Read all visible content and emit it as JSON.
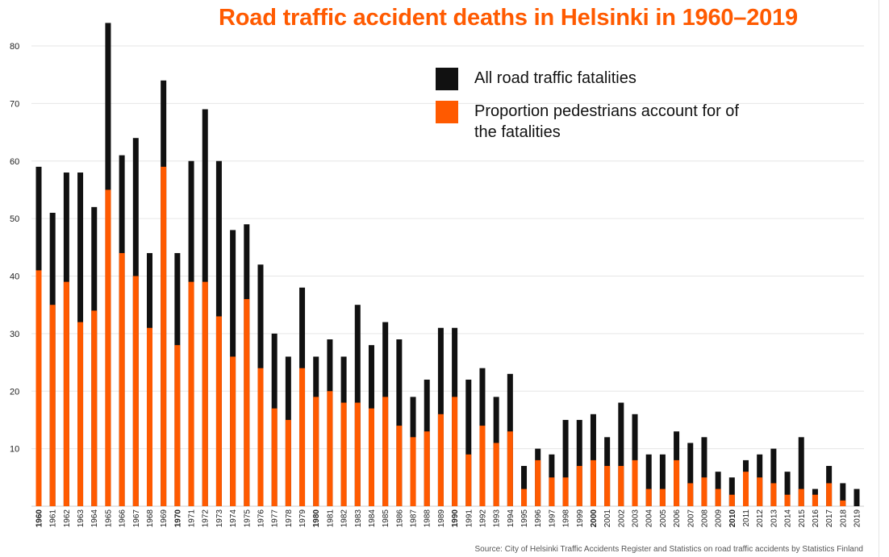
{
  "chart_data": {
    "type": "bar",
    "title": "Road traffic accident deaths in Helsinki in 1960–2019",
    "xlabel": "",
    "ylabel": "",
    "ylim": [
      0,
      85
    ],
    "yticks": [
      "10",
      "20",
      "30",
      "40",
      "50",
      "60",
      "70",
      "80"
    ],
    "categories": [
      "1960",
      "1961",
      "1962",
      "1963",
      "1964",
      "1965",
      "1966",
      "1967",
      "1968",
      "1969",
      "1970",
      "1971",
      "1972",
      "1973",
      "1974",
      "1975",
      "1976",
      "1977",
      "1978",
      "1979",
      "1980",
      "1981",
      "1982",
      "1983",
      "1984",
      "1985",
      "1986",
      "1987",
      "1988",
      "1989",
      "1990",
      "1991",
      "1992",
      "1993",
      "1994",
      "1995",
      "1996",
      "1997",
      "1998",
      "1999",
      "2000",
      "2001",
      "2002",
      "2003",
      "2004",
      "2005",
      "2006",
      "2007",
      "2008",
      "2009",
      "2010",
      "2011",
      "2012",
      "2013",
      "2014",
      "2015",
      "2016",
      "2017",
      "2018",
      "2019"
    ],
    "bold_categories": [
      "1960",
      "1970",
      "1980",
      "1990",
      "2000",
      "2010"
    ],
    "series": [
      {
        "name": "All road traffic fatalities",
        "color": "#111111",
        "values": [
          59,
          51,
          58,
          58,
          52,
          84,
          61,
          64,
          44,
          74,
          44,
          60,
          69,
          60,
          48,
          49,
          42,
          30,
          26,
          38,
          26,
          29,
          26,
          35,
          28,
          32,
          29,
          19,
          22,
          31,
          31,
          22,
          24,
          19,
          23,
          7,
          10,
          9,
          15,
          15,
          16,
          12,
          18,
          16,
          9,
          9,
          13,
          11,
          12,
          6,
          5,
          8,
          9,
          10,
          6,
          12,
          3,
          7,
          4,
          3
        ]
      },
      {
        "name": "Proportion pedestrians account for of the fatalities",
        "color": "#ff5a00",
        "values": [
          41,
          35,
          39,
          32,
          34,
          55,
          44,
          40,
          31,
          59,
          28,
          39,
          39,
          33,
          26,
          36,
          24,
          17,
          15,
          24,
          19,
          20,
          18,
          18,
          17,
          19,
          14,
          12,
          13,
          16,
          19,
          9,
          14,
          11,
          13,
          3,
          8,
          5,
          5,
          7,
          8,
          7,
          7,
          8,
          3,
          3,
          8,
          4,
          5,
          3,
          2,
          6,
          5,
          4,
          2,
          3,
          2,
          4,
          1,
          0
        ]
      }
    ],
    "legend": [
      {
        "label": "All road traffic fatalities",
        "color": "#111111"
      },
      {
        "label": "Proportion pedestrians account for of the fatalities",
        "color": "#ff5a00"
      }
    ],
    "legend_position": "top-right",
    "grid": true,
    "source": "Source: City of Helsinki Traffic Accidents Register and Statistics on road traffic accidents by Statistics Finland"
  }
}
